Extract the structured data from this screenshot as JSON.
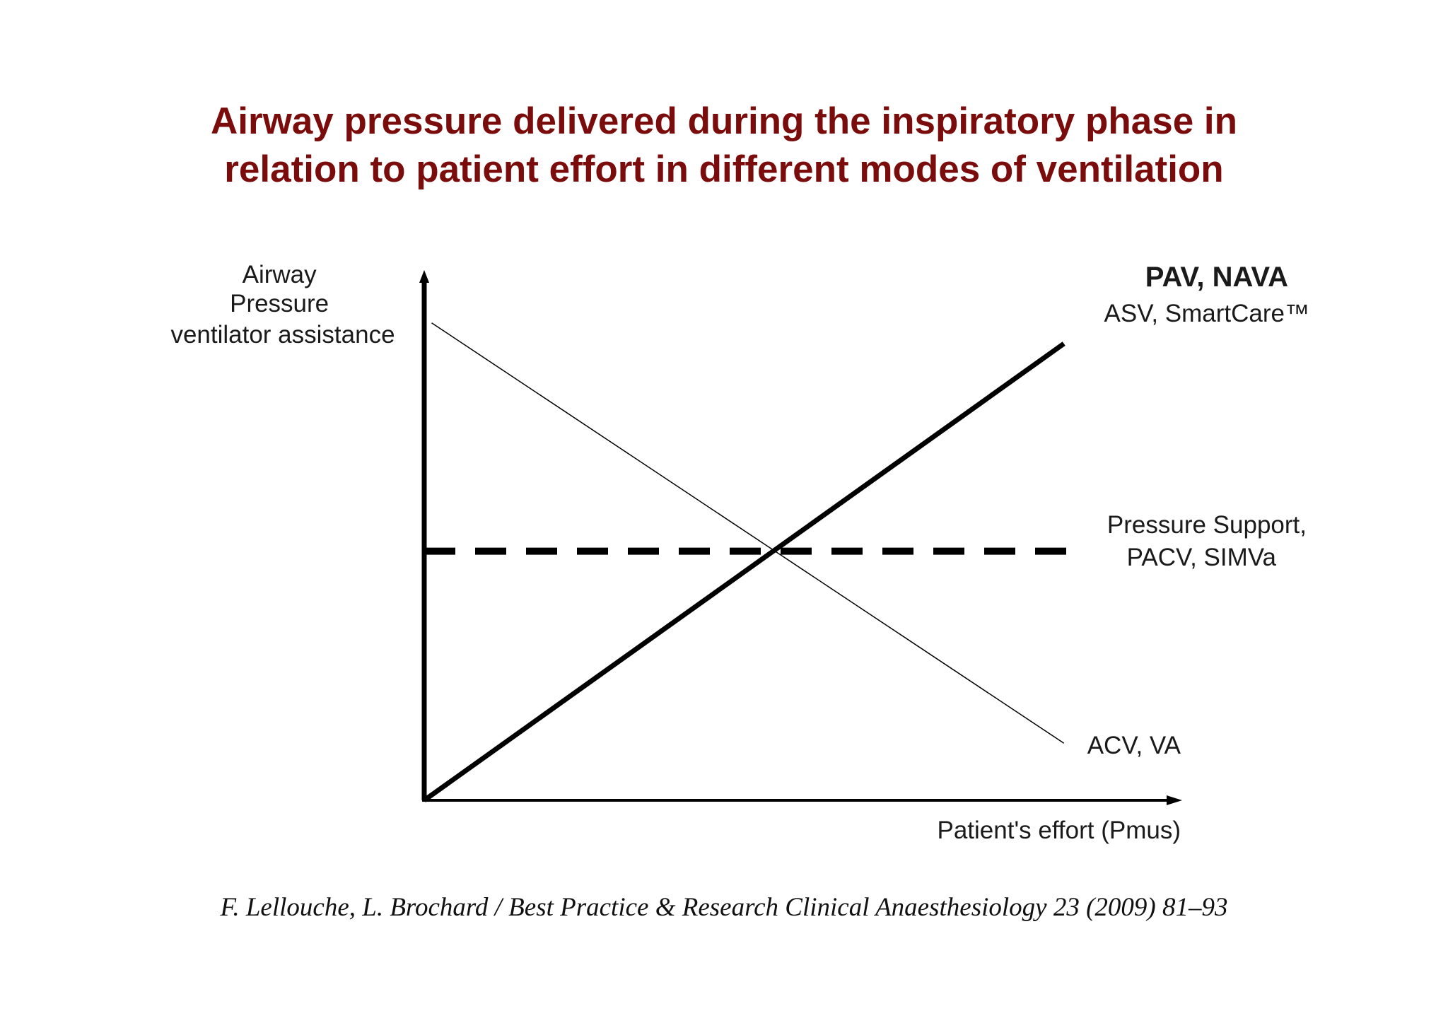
{
  "title": {
    "line1": "Airway pressure delivered during the inspiratory phase in",
    "line2": "relation to patient effort in different modes of ventilation"
  },
  "colors": {
    "title": "#7a0c0c",
    "lines": "#000000"
  },
  "citation": "F. Lellouche, L. Brochard / Best Practice & Research Clinical Anaesthesiology 23 (2009) 81–93",
  "chart_data": {
    "type": "line",
    "ylabel": [
      "Airway",
      "Pressure",
      "ventilator assistance"
    ],
    "xlabel": "Patient's effort (Pmus)",
    "xlim": [
      0,
      1
    ],
    "ylim": [
      0,
      1
    ],
    "grid": false,
    "series": [
      {
        "label_lines": [
          "PAV, NAVA",
          "ASV, SmartCare™"
        ],
        "style": "solid-thick",
        "x": [
          0,
          0.86
        ],
        "y": [
          0,
          0.88
        ]
      },
      {
        "label_lines": [
          "Pressure Support,",
          "PACV, SIMVa"
        ],
        "style": "dashed",
        "x": [
          0,
          0.88
        ],
        "y": [
          0.48,
          0.48
        ]
      },
      {
        "label_lines": [
          "ACV, VA"
        ],
        "style": "solid-thin",
        "x": [
          0.01,
          0.86
        ],
        "y": [
          0.92,
          0.11
        ]
      }
    ]
  }
}
